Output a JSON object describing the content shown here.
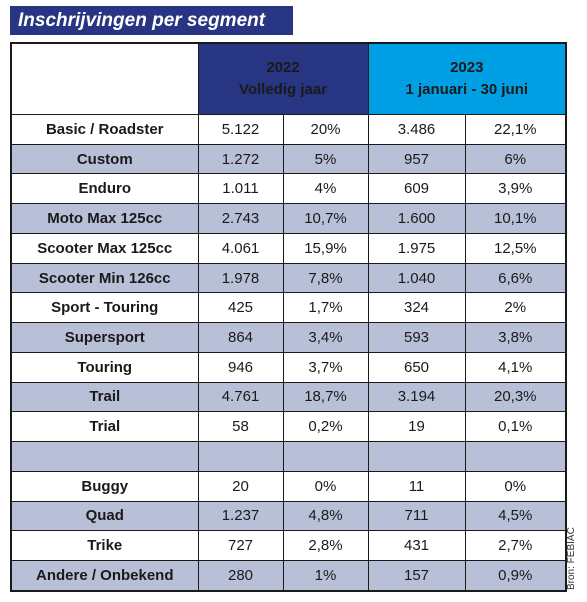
{
  "title": "Inschrijvingen per segment",
  "header": {
    "y2022_line1": "2022",
    "y2022_line2": "Volledig jaar",
    "y2023_line1": "2023",
    "y2023_line2": "1 januari - 30 juni"
  },
  "rows": [
    {
      "segment": "Basic / Roadster",
      "n2022": "5.122",
      "p2022": "20%",
      "n2023": "3.486",
      "p2023": "22,1%"
    },
    {
      "segment": "Custom",
      "n2022": "1.272",
      "p2022": "5%",
      "n2023": "957",
      "p2023": "6%"
    },
    {
      "segment": "Enduro",
      "n2022": "1.011",
      "p2022": "4%",
      "n2023": "609",
      "p2023": "3,9%"
    },
    {
      "segment": "Moto Max 125cc",
      "n2022": "2.743",
      "p2022": "10,7%",
      "n2023": "1.600",
      "p2023": "10,1%"
    },
    {
      "segment": "Scooter Max 125cc",
      "n2022": "4.061",
      "p2022": "15,9%",
      "n2023": "1.975",
      "p2023": "12,5%"
    },
    {
      "segment": "Scooter Min 126cc",
      "n2022": "1.978",
      "p2022": "7,8%",
      "n2023": "1.040",
      "p2023": "6,6%"
    },
    {
      "segment": "Sport - Touring",
      "n2022": "425",
      "p2022": "1,7%",
      "n2023": "324",
      "p2023": "2%"
    },
    {
      "segment": "Supersport",
      "n2022": "864",
      "p2022": "3,4%",
      "n2023": "593",
      "p2023": "3,8%"
    },
    {
      "segment": "Touring",
      "n2022": "946",
      "p2022": "3,7%",
      "n2023": "650",
      "p2023": "4,1%"
    },
    {
      "segment": "Trail",
      "n2022": "4.761",
      "p2022": "18,7%",
      "n2023": "3.194",
      "p2023": "20,3%"
    },
    {
      "segment": "Trial",
      "n2022": "58",
      "p2022": "0,2%",
      "n2023": "19",
      "p2023": "0,1%"
    },
    {
      "segment": "",
      "n2022": "",
      "p2022": "",
      "n2023": "",
      "p2023": ""
    },
    {
      "segment": "Buggy",
      "n2022": "20",
      "p2022": "0%",
      "n2023": "11",
      "p2023": "0%"
    },
    {
      "segment": "Quad",
      "n2022": "1.237",
      "p2022": "4,8%",
      "n2023": "711",
      "p2023": "4,5%"
    },
    {
      "segment": "Trike",
      "n2022": "727",
      "p2022": "2,8%",
      "n2023": "431",
      "p2023": "2,7%"
    },
    {
      "segment": "Andere / Onbekend",
      "n2022": "280",
      "p2022": "1%",
      "n2023": "157",
      "p2023": "0,9%"
    }
  ],
  "source": "Bron: FEBIAC",
  "colors": {
    "title_bg": "#283583",
    "header_2022": "#283583",
    "header_2023": "#009fe3",
    "row_alt": "#b8c0d8"
  }
}
